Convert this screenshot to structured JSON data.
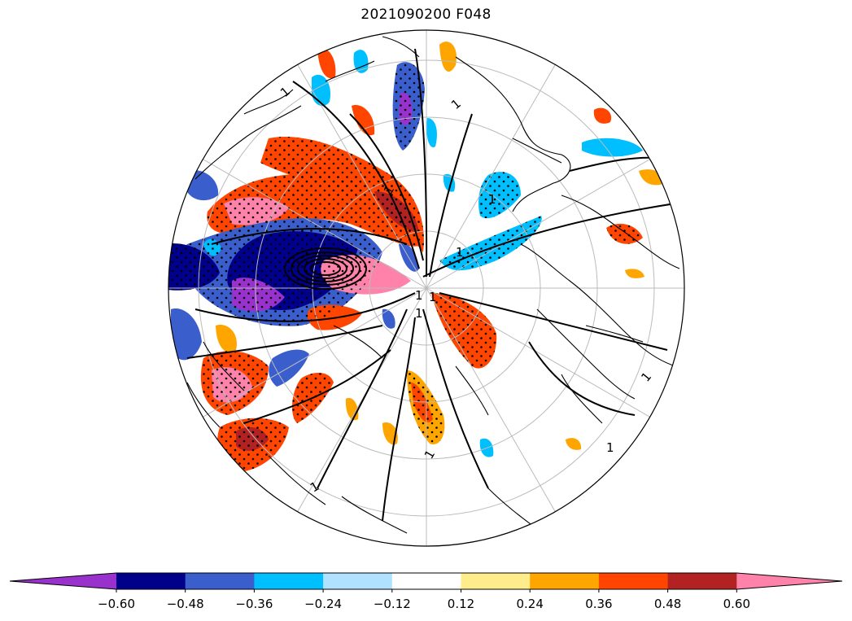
{
  "map": {
    "title": "2021090200 F048",
    "contour_label": "1"
  },
  "colorbar": {
    "levels": [
      "−0.60",
      "−0.48",
      "−0.36",
      "−0.24",
      "−0.12",
      "0.12",
      "0.24",
      "0.36",
      "0.48",
      "0.60"
    ],
    "colors": [
      "#9932cc",
      "#00008b",
      "#3a5fcd",
      "#00bfff",
      "#b0e2ff",
      "#ffffff",
      "#ffec8b",
      "#ffa500",
      "#ff4500",
      "#b22222",
      "#ff82ab"
    ],
    "extend": "both"
  }
}
